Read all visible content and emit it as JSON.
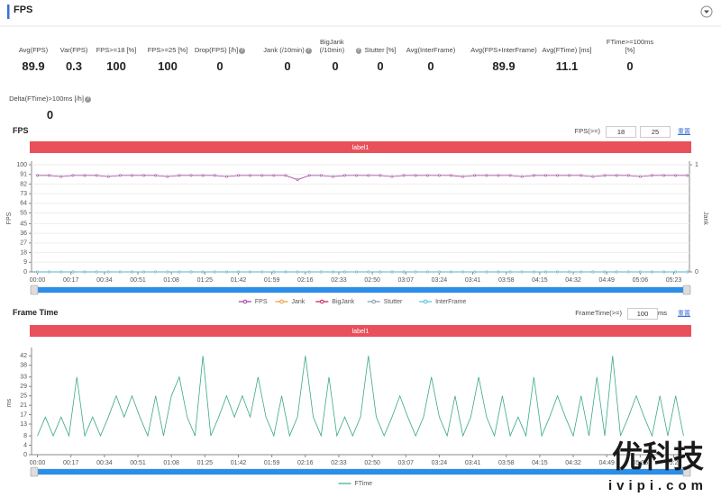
{
  "header": {
    "title": "FPS"
  },
  "stats": [
    {
      "label": "Avg(FPS)",
      "value": 89.9,
      "info": false
    },
    {
      "label": "Var(FPS)",
      "value": 0.3,
      "info": false
    },
    {
      "label": "FPS>=18 [%]",
      "value": 100,
      "info": false
    },
    {
      "label": "FPS>=25 [%]",
      "value": 100,
      "info": false
    },
    {
      "label": "Drop(FPS) [/h]",
      "value": 0,
      "info": true
    },
    {
      "label": "Jank (/10min)",
      "value": 0,
      "info": true
    },
    {
      "label": "BigJank (/10min)",
      "value": 0,
      "info": true
    },
    {
      "label": "Stutter [%]",
      "value": 0,
      "info": false
    },
    {
      "label": "Avg(InterFrame)",
      "value": 0,
      "info": false
    },
    {
      "label": "Avg(FPS+InterFrame)",
      "value": 89.9,
      "info": false
    },
    {
      "label": "Avg(FTime) [ms]",
      "value": 11.1,
      "info": false
    },
    {
      "label": "FTime>=100ms [%]",
      "value": 0,
      "info": false
    },
    {
      "label": "Delta(FTime)>100ms [/h]",
      "value": 0,
      "info": true
    }
  ],
  "chart_data": [
    {
      "type": "line",
      "title": "FPS",
      "threshold_label": "FPS(>=)",
      "thresholds": [
        18,
        25
      ],
      "reset": "重置",
      "band_label": "label1",
      "ylabel": "FPS",
      "y2label": "Jank",
      "grid": true,
      "xlim": [
        -3,
        331
      ],
      "xticks": [
        {
          "value": 0,
          "label": "00:00"
        },
        {
          "value": 17,
          "label": "00:17"
        },
        {
          "value": 34,
          "label": "00:34"
        },
        {
          "value": 51,
          "label": "00:51"
        },
        {
          "value": 68,
          "label": "01:08"
        },
        {
          "value": 85,
          "label": "01:25"
        },
        {
          "value": 102,
          "label": "01:42"
        },
        {
          "value": 119,
          "label": "01:59"
        },
        {
          "value": 136,
          "label": "02:16"
        },
        {
          "value": 153,
          "label": "02:33"
        },
        {
          "value": 170,
          "label": "02:50"
        },
        {
          "value": 187,
          "label": "03:07"
        },
        {
          "value": 204,
          "label": "03:24"
        },
        {
          "value": 221,
          "label": "03:41"
        },
        {
          "value": 238,
          "label": "03:58"
        },
        {
          "value": 255,
          "label": "04:15"
        },
        {
          "value": 272,
          "label": "04:32"
        },
        {
          "value": 289,
          "label": "04:49"
        },
        {
          "value": 306,
          "label": "05:06"
        },
        {
          "value": 323,
          "label": "05:23"
        }
      ],
      "ylim": [
        0,
        100
      ],
      "yticks": [
        0,
        9,
        18,
        27,
        36,
        45,
        55,
        64,
        73,
        82,
        91,
        100
      ],
      "y2lim": [
        0,
        1
      ],
      "y2ticks": [
        0,
        1
      ],
      "x": [
        0,
        6,
        12,
        18,
        24,
        30,
        36,
        42,
        48,
        54,
        60,
        66,
        72,
        78,
        84,
        90,
        96,
        102,
        108,
        114,
        120,
        126,
        132,
        138,
        144,
        150,
        156,
        162,
        168,
        174,
        180,
        186,
        192,
        198,
        204,
        210,
        216,
        222,
        228,
        234,
        240,
        246,
        252,
        258,
        264,
        270,
        276,
        282,
        288,
        294,
        300,
        306,
        312,
        318,
        324,
        330
      ],
      "series": [
        {
          "name": "FPS",
          "color": "#9c3aa0",
          "markers": true,
          "values": [
            90,
            90,
            89,
            90,
            90,
            90,
            89,
            90,
            90,
            90,
            90,
            89,
            90,
            90,
            90,
            90,
            89,
            90,
            90,
            90,
            90,
            90,
            86,
            90,
            90,
            89,
            90,
            90,
            90,
            90,
            89,
            90,
            90,
            90,
            90,
            90,
            89,
            90,
            90,
            90,
            90,
            89,
            90,
            90,
            90,
            90,
            90,
            89,
            90,
            90,
            90,
            89,
            90,
            90,
            90,
            90
          ]
        },
        {
          "name": "Jank",
          "color": "#f0953a",
          "markers": true,
          "axis": "y2",
          "values": [
            0,
            0,
            0,
            0,
            0,
            0,
            0,
            0,
            0,
            0,
            0,
            0,
            0,
            0,
            0,
            0,
            0,
            0,
            0,
            0,
            0,
            0,
            0,
            0,
            0,
            0,
            0,
            0,
            0,
            0,
            0,
            0,
            0,
            0,
            0,
            0,
            0,
            0,
            0,
            0,
            0,
            0,
            0,
            0,
            0,
            0,
            0,
            0,
            0,
            0,
            0,
            0,
            0,
            0,
            0,
            0
          ]
        },
        {
          "name": "BigJank",
          "color": "#c2185b",
          "markers": true,
          "axis": "y2",
          "values": [
            0,
            0,
            0,
            0,
            0,
            0,
            0,
            0,
            0,
            0,
            0,
            0,
            0,
            0,
            0,
            0,
            0,
            0,
            0,
            0,
            0,
            0,
            0,
            0,
            0,
            0,
            0,
            0,
            0,
            0,
            0,
            0,
            0,
            0,
            0,
            0,
            0,
            0,
            0,
            0,
            0,
            0,
            0,
            0,
            0,
            0,
            0,
            0,
            0,
            0,
            0,
            0,
            0,
            0,
            0,
            0
          ]
        },
        {
          "name": "Stutter",
          "color": "#7a9aa8",
          "markers": true,
          "values": [
            0,
            0,
            0,
            0,
            0,
            0,
            0,
            0,
            0,
            0,
            0,
            0,
            0,
            0,
            0,
            0,
            0,
            0,
            0,
            0,
            0,
            0,
            0,
            0,
            0,
            0,
            0,
            0,
            0,
            0,
            0,
            0,
            0,
            0,
            0,
            0,
            0,
            0,
            0,
            0,
            0,
            0,
            0,
            0,
            0,
            0,
            0,
            0,
            0,
            0,
            0,
            0,
            0,
            0,
            0,
            0
          ]
        },
        {
          "name": "InterFrame",
          "color": "#4dc3d6",
          "markers": true,
          "values": [
            0,
            0,
            0,
            0,
            0,
            0,
            0,
            0,
            0,
            0,
            0,
            0,
            0,
            0,
            0,
            0,
            0,
            0,
            0,
            0,
            0,
            0,
            0,
            0,
            0,
            0,
            0,
            0,
            0,
            0,
            0,
            0,
            0,
            0,
            0,
            0,
            0,
            0,
            0,
            0,
            0,
            0,
            0,
            0,
            0,
            0,
            0,
            0,
            0,
            0,
            0,
            0,
            0,
            0,
            0,
            0
          ]
        }
      ]
    },
    {
      "type": "line",
      "title": "Frame Time",
      "threshold_label": "FrameTime(>=)",
      "thresholds": [
        100
      ],
      "threshold_unit": "ms",
      "reset": "重置",
      "band_label": "label1",
      "ylabel": "ms",
      "grid": false,
      "xlim": [
        -3,
        331
      ],
      "xticks": [
        {
          "value": 0,
          "label": "00:00"
        },
        {
          "value": 17,
          "label": "00:17"
        },
        {
          "value": 34,
          "label": "00:34"
        },
        {
          "value": 51,
          "label": "00:51"
        },
        {
          "value": 68,
          "label": "01:08"
        },
        {
          "value": 85,
          "label": "01:25"
        },
        {
          "value": 102,
          "label": "01:42"
        },
        {
          "value": 119,
          "label": "01:59"
        },
        {
          "value": 136,
          "label": "02:16"
        },
        {
          "value": 153,
          "label": "02:33"
        },
        {
          "value": 170,
          "label": "02:50"
        },
        {
          "value": 187,
          "label": "03:07"
        },
        {
          "value": 204,
          "label": "03:24"
        },
        {
          "value": 221,
          "label": "03:41"
        },
        {
          "value": 238,
          "label": "03:58"
        },
        {
          "value": 255,
          "label": "04:15"
        },
        {
          "value": 272,
          "label": "04:32"
        },
        {
          "value": 289,
          "label": "04:49"
        },
        {
          "value": 306,
          "label": "05:06"
        },
        {
          "value": 323,
          "label": "05:23"
        }
      ],
      "ylim": [
        0,
        44
      ],
      "yticks": [
        0,
        4,
        8,
        13,
        17,
        21,
        25,
        29,
        33,
        38,
        42
      ],
      "x": [
        0,
        4,
        8,
        12,
        16,
        20,
        24,
        28,
        32,
        36,
        40,
        44,
        48,
        52,
        56,
        60,
        64,
        68,
        72,
        76,
        80,
        84,
        88,
        92,
        96,
        100,
        104,
        108,
        112,
        116,
        120,
        124,
        128,
        132,
        136,
        140,
        144,
        148,
        152,
        156,
        160,
        164,
        168,
        172,
        176,
        180,
        184,
        188,
        192,
        196,
        200,
        204,
        208,
        212,
        216,
        220,
        224,
        228,
        232,
        236,
        240,
        244,
        248,
        252,
        256,
        260,
        264,
        268,
        272,
        276,
        280,
        284,
        288,
        292,
        296,
        300,
        304,
        308,
        312,
        316,
        320,
        324,
        328
      ],
      "series": [
        {
          "name": "FTime",
          "color": "#3aa88a",
          "markers": false,
          "values": [
            8,
            16,
            8,
            16,
            8,
            33,
            8,
            16,
            8,
            16,
            25,
            16,
            25,
            16,
            8,
            25,
            8,
            25,
            33,
            16,
            8,
            42,
            8,
            16,
            25,
            16,
            25,
            16,
            33,
            16,
            8,
            25,
            8,
            16,
            42,
            16,
            8,
            33,
            8,
            16,
            8,
            16,
            42,
            16,
            8,
            16,
            25,
            16,
            8,
            16,
            33,
            16,
            8,
            25,
            8,
            16,
            33,
            16,
            8,
            25,
            8,
            16,
            8,
            33,
            8,
            16,
            25,
            16,
            8,
            25,
            8,
            33,
            8,
            42,
            8,
            16,
            25,
            16,
            8,
            25,
            8,
            25,
            8
          ]
        }
      ]
    }
  ],
  "watermark": {
    "title": "优科技",
    "url": "ivipi.com"
  }
}
